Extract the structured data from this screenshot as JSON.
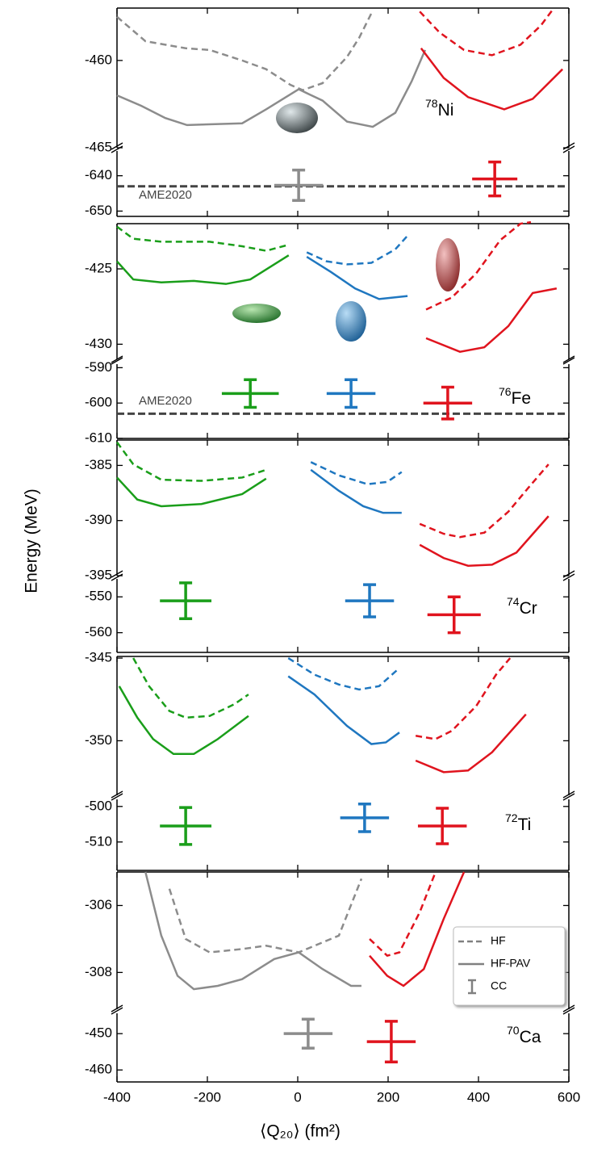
{
  "chart_data": [
    {
      "type": "line",
      "xlim": [
        -400,
        600
      ],
      "xticks": [
        -400,
        -200,
        0,
        200,
        400,
        600
      ],
      "ylim": [
        -465,
        -457
      ],
      "yticks": [
        -465,
        -460
      ],
      "ylabel": "Energy (MeV)",
      "series": [
        {
          "style": "dashed",
          "color": "#8c8c8c",
          "x": [
            -400,
            -337,
            -248,
            -195,
            -123,
            -70,
            -16,
            11,
            55,
            109,
            136,
            163
          ],
          "values": [
            -457.5,
            -458.9,
            -459.3,
            -459.4,
            -460.0,
            -460.5,
            -461.4,
            -461.7,
            -461.3,
            -459.8,
            -458.7,
            -457.3
          ]
        },
        {
          "style": "solid",
          "color": "#8c8c8c",
          "x": [
            -400,
            -346,
            -293,
            -245,
            -123,
            -70,
            2,
            55,
            109,
            166,
            216,
            252,
            282
          ],
          "values": [
            -462.0,
            -462.6,
            -463.3,
            -463.7,
            -463.6,
            -462.8,
            -461.65,
            -462.3,
            -463.5,
            -463.8,
            -463.0,
            -461.2,
            -459.4
          ]
        },
        {
          "style": "dashed",
          "color": "#e0141e",
          "x": [
            270,
            314,
            368,
            430,
            493,
            538,
            564
          ],
          "values": [
            -457.2,
            -458.4,
            -459.4,
            -459.7,
            -459.1,
            -458.0,
            -457.1
          ]
        },
        {
          "style": "solid",
          "color": "#e0141e",
          "x": [
            273,
            323,
            377,
            457,
            520,
            586
          ],
          "values": [
            -459.3,
            -461.0,
            -462.1,
            -462.8,
            -462.2,
            -460.5
          ]
        }
      ]
    },
    {
      "type": "errorbar",
      "xlim": [
        -400,
        600
      ],
      "xticks": [
        -400,
        -200,
        0,
        200,
        400,
        600
      ],
      "ylim": [
        -651.5,
        -633
      ],
      "yticks": [
        -650,
        -640
      ],
      "nucleus": {
        "mass": "78",
        "symbol": "Ni"
      },
      "reference": {
        "value": -643,
        "label": "AME2020",
        "color": "#444444"
      },
      "x": [
        2,
        436
      ],
      "values": [
        -642.7,
        -640.9
      ],
      "xerr": [
        54,
        50
      ],
      "yerr": [
        4.3,
        4.8
      ],
      "colors": [
        "#8c8c8c",
        "#e0141e"
      ]
    },
    {
      "type": "line",
      "xlim": [
        -400,
        600
      ],
      "xticks": [
        -400,
        -200,
        0,
        200,
        400,
        600
      ],
      "ylim": [
        -431,
        -422
      ],
      "yticks": [
        -430,
        -425
      ],
      "series": [
        {
          "style": "dashed",
          "color": "#1a9e1a",
          "x": [
            -400,
            -364,
            -302,
            -195,
            -123,
            -70,
            -20
          ],
          "values": [
            -422.2,
            -423.0,
            -423.2,
            -423.2,
            -423.5,
            -423.8,
            -423.4
          ]
        },
        {
          "style": "solid",
          "color": "#1a9e1a",
          "x": [
            -400,
            -364,
            -302,
            -230,
            -159,
            -105,
            -52,
            -20
          ],
          "values": [
            -424.5,
            -425.7,
            -425.9,
            -425.8,
            -426.0,
            -425.7,
            -424.7,
            -424.1
          ]
        },
        {
          "style": "dashed",
          "color": "#1f77c0",
          "x": [
            20,
            64,
            109,
            163,
            216,
            243
          ],
          "values": [
            -423.9,
            -424.5,
            -424.7,
            -424.6,
            -423.7,
            -422.8
          ]
        },
        {
          "style": "solid",
          "color": "#1f77c0",
          "x": [
            20,
            73,
            127,
            180,
            243
          ],
          "values": [
            -424.2,
            -425.2,
            -426.3,
            -427.0,
            -426.8
          ]
        },
        {
          "style": "dashed",
          "color": "#e0141e",
          "x": [
            284,
            341,
            395,
            448,
            493,
            516
          ],
          "values": [
            -427.7,
            -426.9,
            -425.3,
            -423.1,
            -422.0,
            -421.9
          ]
        },
        {
          "style": "solid",
          "color": "#e0141e",
          "x": [
            284,
            359,
            413,
            466,
            520,
            573
          ],
          "values": [
            -429.6,
            -430.5,
            -430.2,
            -428.8,
            -426.6,
            -426.3
          ]
        }
      ]
    },
    {
      "type": "errorbar",
      "xlim": [
        -400,
        600
      ],
      "xticks": [
        -400,
        -200,
        0,
        200,
        400,
        600
      ],
      "ylim": [
        -610,
        -589
      ],
      "yticks": [
        -610,
        -600,
        -590
      ],
      "nucleus": {
        "mass": "76",
        "symbol": "Fe"
      },
      "reference": {
        "value": -603,
        "label": "AME2020",
        "color": "#444444"
      },
      "x": [
        -105,
        118,
        332
      ],
      "values": [
        -597.3,
        -597.3,
        -600.0
      ],
      "xerr": [
        63,
        54,
        54
      ],
      "yerr": [
        3.9,
        3.9,
        4.5
      ],
      "colors": [
        "#1a9e1a",
        "#1f77c0",
        "#e0141e"
      ]
    },
    {
      "type": "line",
      "xlim": [
        -400,
        600
      ],
      "xticks": [
        -400,
        -200,
        0,
        200,
        400,
        600
      ],
      "ylim": [
        -395,
        -382.7
      ],
      "yticks": [
        -395,
        -390,
        -385
      ],
      "series": [
        {
          "style": "dashed",
          "color": "#1a9e1a",
          "x": [
            -400,
            -364,
            -302,
            -213,
            -123,
            -70
          ],
          "values": [
            -382.9,
            -384.9,
            -386.3,
            -386.4,
            -386.1,
            -385.4
          ]
        },
        {
          "style": "solid",
          "color": "#1a9e1a",
          "x": [
            -400,
            -355,
            -302,
            -213,
            -123,
            -70
          ],
          "values": [
            -386.1,
            -388.1,
            -388.7,
            -388.5,
            -387.6,
            -386.2
          ]
        },
        {
          "style": "dashed",
          "color": "#1f77c0",
          "x": [
            29,
            91,
            154,
            198,
            230
          ],
          "values": [
            -384.7,
            -385.9,
            -386.7,
            -386.5,
            -385.6
          ]
        },
        {
          "style": "solid",
          "color": "#1f77c0",
          "x": [
            29,
            91,
            145,
            189,
            230
          ],
          "values": [
            -385.4,
            -387.3,
            -388.7,
            -389.3,
            -389.3
          ]
        },
        {
          "style": "dashed",
          "color": "#e0141e",
          "x": [
            270,
            323,
            359,
            413,
            466,
            511,
            555
          ],
          "values": [
            -390.3,
            -391.2,
            -391.5,
            -391.1,
            -389.2,
            -387.0,
            -384.9
          ]
        },
        {
          "style": "solid",
          "color": "#e0141e",
          "x": [
            270,
            323,
            377,
            430,
            484,
            555
          ],
          "values": [
            -392.2,
            -393.4,
            -394.1,
            -394.0,
            -392.9,
            -389.6
          ]
        }
      ]
    },
    {
      "type": "errorbar",
      "xlim": [
        -400,
        600
      ],
      "xticks": [
        -400,
        -200,
        0,
        200,
        400,
        600
      ],
      "ylim": [
        -565.5,
        -545
      ],
      "yticks": [
        -560,
        -550
      ],
      "nucleus": {
        "mass": "74",
        "symbol": "Cr"
      },
      "x": [
        -248,
        159,
        346
      ],
      "values": [
        -551.1,
        -551.1,
        -555.0
      ],
      "xerr": [
        57,
        54,
        59
      ],
      "yerr": [
        5.0,
        4.5,
        5.0
      ],
      "colors": [
        "#1a9e1a",
        "#1f77c0",
        "#e0141e"
      ]
    },
    {
      "type": "line",
      "xlim": [
        -400,
        600
      ],
      "xticks": [
        -400,
        -200,
        0,
        200,
        400,
        600
      ],
      "ylim": [
        -353.3,
        -344.9
      ],
      "yticks": [
        -350,
        -345
      ],
      "series": [
        {
          "style": "dashed",
          "color": "#1a9e1a",
          "x": [
            -364,
            -329,
            -284,
            -248,
            -195,
            -141,
            -109
          ],
          "values": [
            -345.0,
            -346.7,
            -348.2,
            -348.6,
            -348.5,
            -347.8,
            -347.2
          ]
        },
        {
          "style": "solid",
          "color": "#1a9e1a",
          "x": [
            -395,
            -355,
            -320,
            -275,
            -230,
            -177,
            -109
          ],
          "values": [
            -346.7,
            -348.6,
            -349.9,
            -350.8,
            -350.8,
            -349.9,
            -348.5
          ]
        },
        {
          "style": "dashed",
          "color": "#1f77c0",
          "x": [
            -21,
            37,
            91,
            136,
            180,
            225
          ],
          "values": [
            -345.0,
            -346.0,
            -346.6,
            -346.9,
            -346.7,
            -345.6
          ]
        },
        {
          "style": "solid",
          "color": "#1f77c0",
          "x": [
            -21,
            37,
            109,
            163,
            195,
            225
          ],
          "values": [
            -346.1,
            -347.2,
            -349.1,
            -350.2,
            -350.1,
            -349.5
          ]
        },
        {
          "style": "dashed",
          "color": "#e0141e",
          "x": [
            261,
            305,
            341,
            395,
            439,
            470
          ],
          "values": [
            -349.7,
            -349.9,
            -349.4,
            -347.9,
            -346.0,
            -345.0
          ]
        },
        {
          "style": "solid",
          "color": "#e0141e",
          "x": [
            261,
            323,
            377,
            430,
            505
          ],
          "values": [
            -351.2,
            -351.9,
            -351.8,
            -350.7,
            -348.4
          ]
        }
      ]
    },
    {
      "type": "errorbar",
      "xlim": [
        -400,
        600
      ],
      "xticks": [
        -400,
        -200,
        0,
        200,
        400,
        600
      ],
      "ylim": [
        -518,
        -498
      ],
      "yticks": [
        -510,
        -500
      ],
      "nucleus": {
        "mass": "72",
        "symbol": "Ti"
      },
      "x": [
        -248,
        148,
        320
      ],
      "values": [
        -505.5,
        -503.2,
        -505.5
      ],
      "xerr": [
        57,
        54,
        54
      ],
      "yerr": [
        5.2,
        3.9,
        5.0
      ],
      "colors": [
        "#1a9e1a",
        "#1f77c0",
        "#e0141e"
      ]
    },
    {
      "type": "line",
      "xlim": [
        -400,
        600
      ],
      "xticks": [
        -400,
        -200,
        0,
        200,
        400,
        600
      ],
      "ylim": [
        -309.1,
        -305
      ],
      "yticks": [
        -308,
        -306
      ],
      "legend": {
        "position": "lower right",
        "color": "#808080",
        "entries": [
          {
            "name": "HF",
            "style": "dashed"
          },
          {
            "name": "HF-PAV",
            "style": "solid"
          },
          {
            "name": "CC",
            "style": "errorbar"
          }
        ]
      },
      "series": [
        {
          "style": "dashed",
          "color": "#8c8c8c",
          "x": [
            -284,
            -248,
            -195,
            -123,
            -70,
            2,
            91,
            141
          ],
          "values": [
            -305.5,
            -307.0,
            -307.4,
            -307.3,
            -307.2,
            -307.4,
            -306.9,
            -305.2
          ]
        },
        {
          "style": "solid",
          "color": "#8c8c8c",
          "x": [
            -337,
            -302,
            -266,
            -230,
            -177,
            -123,
            -52,
            2,
            55,
            118,
            141
          ],
          "values": [
            -305.0,
            -306.9,
            -308.1,
            -308.5,
            -308.4,
            -308.2,
            -307.6,
            -307.4,
            -307.9,
            -308.4,
            -308.4
          ]
        },
        {
          "style": "dashed",
          "color": "#e0141e",
          "x": [
            159,
            198,
            225,
            270,
            305
          ],
          "values": [
            -307.0,
            -307.5,
            -307.4,
            -306.2,
            -305.0
          ]
        },
        {
          "style": "solid",
          "color": "#e0141e",
          "x": [
            159,
            198,
            234,
            279,
            323,
            368
          ],
          "values": [
            -307.5,
            -308.1,
            -308.4,
            -307.9,
            -306.4,
            -305.0
          ]
        }
      ]
    },
    {
      "type": "errorbar",
      "xlim": [
        -400,
        600
      ],
      "xticks": [
        -400,
        -200,
        0,
        200,
        400,
        600
      ],
      "ylim": [
        -463.3,
        -444.4
      ],
      "yticks": [
        -460,
        -450
      ],
      "nucleus": {
        "mass": "70",
        "symbol": "Ca"
      },
      "xlabel": "⟨Q₂₀⟩ (fm²)",
      "x": [
        23,
        207
      ],
      "values": [
        -450.0,
        -452.2
      ],
      "xerr": [
        54,
        54
      ],
      "yerr": [
        4.0,
        5.6
      ],
      "colors": [
        "#8c8c8c",
        "#e0141e"
      ]
    }
  ]
}
